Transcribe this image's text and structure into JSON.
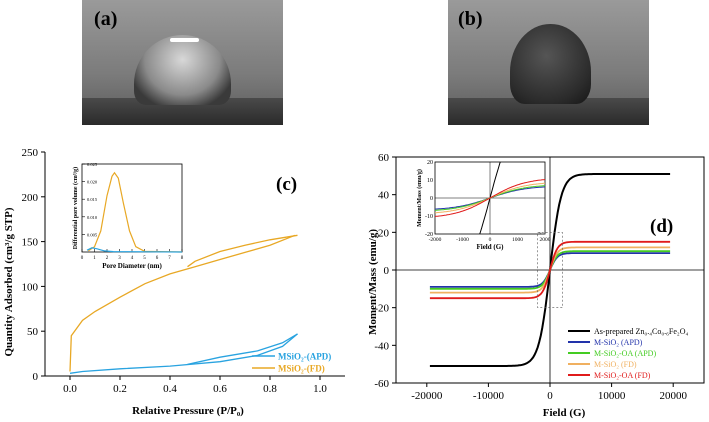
{
  "panel_a": {
    "label": "(a)"
  },
  "panel_b": {
    "label": "(b)"
  },
  "chart_data": [
    {
      "type": "line",
      "panel_label": "(c)",
      "xlabel": "Relative Pressure (P/P₀)",
      "ylabel": "Quantity Adsorbed (cm³/g STP)",
      "xlim": [
        -0.1,
        1.1
      ],
      "ylim": [
        0,
        250
      ],
      "xticks": [
        "0.0",
        "0.2",
        "0.4",
        "0.6",
        "0.8",
        "1.0"
      ],
      "yticks": [
        "0",
        "50",
        "100",
        "150",
        "200",
        "250"
      ],
      "legend_position": "bottom-right",
      "series": [
        {
          "name": "MSiO₂-(APD)",
          "color": "#29a3e0",
          "adsorption": [
            [
              0.0,
              3
            ],
            [
              0.05,
              5
            ],
            [
              0.2,
              8
            ],
            [
              0.4,
              11
            ],
            [
              0.6,
              16
            ],
            [
              0.75,
              23
            ],
            [
              0.85,
              33
            ],
            [
              0.91,
              47
            ]
          ],
          "desorption": [
            [
              0.91,
              47
            ],
            [
              0.85,
              37
            ],
            [
              0.75,
              28
            ],
            [
              0.6,
              21
            ],
            [
              0.47,
              13
            ]
          ]
        },
        {
          "name": "MSiO₂-(FD)",
          "color": "#e8a825",
          "adsorption": [
            [
              0.0,
              5
            ],
            [
              0.005,
              45
            ],
            [
              0.05,
              62
            ],
            [
              0.1,
              72
            ],
            [
              0.2,
              88
            ],
            [
              0.3,
              103
            ],
            [
              0.4,
              114
            ],
            [
              0.5,
              122
            ],
            [
              0.6,
              130
            ],
            [
              0.7,
              138
            ],
            [
              0.8,
              146
            ],
            [
              0.9,
              157
            ]
          ],
          "desorption": [
            [
              0.91,
              157
            ],
            [
              0.8,
              152
            ],
            [
              0.7,
              146
            ],
            [
              0.6,
              139
            ],
            [
              0.5,
              128
            ],
            [
              0.47,
              122
            ]
          ]
        }
      ],
      "inset": {
        "xlabel": "Pore Diameter (nm)",
        "ylabel": "Differential pore volume (cm³/g)",
        "xlim": [
          0,
          8
        ],
        "ylim": [
          0,
          0.025
        ],
        "xticks": [
          "0",
          "1",
          "2",
          "3",
          "4",
          "5",
          "6",
          "7",
          "8"
        ],
        "yticks": [
          "0.005",
          "0.010",
          "0.015",
          "0.020",
          "0.025"
        ],
        "series": [
          {
            "name": "MSiO₂-(FD)",
            "color": "#e8a825",
            "points": [
              [
                0.5,
                0.0003
              ],
              [
                1.0,
                0.0015
              ],
              [
                1.5,
                0.006
              ],
              [
                2.0,
                0.016
              ],
              [
                2.4,
                0.0215
              ],
              [
                2.6,
                0.0225
              ],
              [
                2.9,
                0.021
              ],
              [
                3.3,
                0.014
              ],
              [
                3.8,
                0.006
              ],
              [
                4.3,
                0.0015
              ],
              [
                5.0,
                0.0002
              ],
              [
                8.0,
                0.0
              ]
            ]
          },
          {
            "name": "MSiO₂-(APD)",
            "color": "#29a3e0",
            "points": [
              [
                0.4,
                0.0005
              ],
              [
                0.8,
                0.0012
              ],
              [
                1.2,
                0.0009
              ],
              [
                1.8,
                0.0003
              ],
              [
                2.5,
                0.0001
              ],
              [
                8.0,
                0.0
              ]
            ]
          }
        ]
      }
    },
    {
      "type": "line",
      "panel_label": "(d)",
      "xlabel": "Field (G)",
      "ylabel": "Moment/Mass (emu/g)",
      "xlim": [
        -25000,
        25000
      ],
      "ylim": [
        -60,
        60
      ],
      "xticks": [
        "-20000",
        "-10000",
        "0",
        "10000",
        "20000"
      ],
      "yticks": [
        "-60",
        "-40",
        "-20",
        "0",
        "20",
        "40",
        "60"
      ],
      "legend_position": "bottom-right",
      "series": [
        {
          "name": "As-prepared Zn₀.₄Co₀.₆Fe₂O₄",
          "color": "#000000",
          "ms": 51
        },
        {
          "name": "M-SiO₂ (APD)",
          "color": "#2233aa",
          "ms": 9
        },
        {
          "name": "M-SiO₂-OA (APD)",
          "color": "#44cc22",
          "ms": 10
        },
        {
          "name": "M-SiO₂ (FD)",
          "color": "#f0b060",
          "ms": 12
        },
        {
          "name": "M-SiO₂-OA (FD)",
          "color": "#e01b1b",
          "ms": 15
        }
      ],
      "inset": {
        "xlabel": "Field (G)",
        "ylabel": "Moment/Mass (emu/g)",
        "xlim": [
          -2000,
          2000
        ],
        "ylim": [
          -20,
          20
        ],
        "xticks": [
          "-2000",
          "-1000",
          "0",
          "1000",
          "2000"
        ],
        "yticks": [
          "-20",
          "-10",
          "0",
          "10",
          "20"
        ]
      }
    }
  ]
}
